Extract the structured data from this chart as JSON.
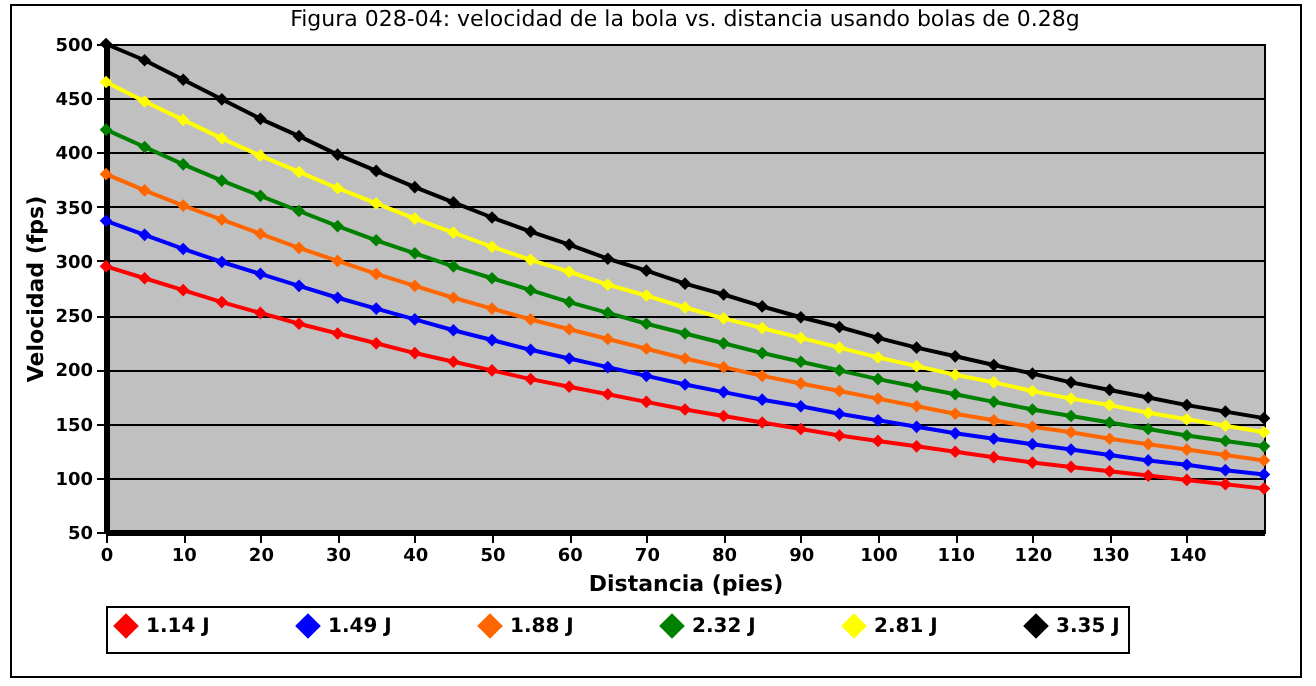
{
  "chart_data": {
    "type": "line",
    "title": "Figura 028-04: velocidad de la bola vs. distancia usando bolas de 0.28g",
    "xlabel": "Distancia (pies)",
    "ylabel": "Velocidad (fps)",
    "x": [
      0,
      5,
      10,
      15,
      20,
      25,
      30,
      35,
      40,
      45,
      50,
      55,
      60,
      65,
      70,
      75,
      80,
      85,
      90,
      95,
      100,
      105,
      110,
      115,
      120,
      125,
      130,
      135,
      140,
      145,
      150
    ],
    "series": [
      {
        "name": "1.14 J",
        "color": "#ff0000",
        "values": [
          295,
          284,
          273,
          262,
          252,
          242,
          233,
          224,
          215,
          207,
          199,
          191,
          184,
          177,
          170,
          163,
          157,
          151,
          145,
          139,
          134,
          129,
          124,
          119,
          114,
          110,
          106,
          102,
          98,
          94,
          90
        ]
      },
      {
        "name": "1.49 J",
        "color": "#0000ff",
        "values": [
          337,
          324,
          311,
          299,
          288,
          277,
          266,
          256,
          246,
          236,
          227,
          218,
          210,
          202,
          194,
          186,
          179,
          172,
          166,
          159,
          153,
          147,
          141,
          136,
          131,
          126,
          121,
          116,
          112,
          107,
          103
        ]
      },
      {
        "name": "1.88 J",
        "color": "#ff6600",
        "values": [
          380,
          365,
          351,
          338,
          325,
          312,
          300,
          288,
          277,
          266,
          256,
          246,
          237,
          228,
          219,
          210,
          202,
          194,
          187,
          180,
          173,
          166,
          159,
          153,
          147,
          142,
          136,
          131,
          126,
          121,
          116
        ]
      },
      {
        "name": "2.32 J",
        "color": "#008000",
        "values": [
          421,
          405,
          389,
          374,
          360,
          346,
          332,
          319,
          307,
          295,
          284,
          273,
          262,
          252,
          242,
          233,
          224,
          215,
          207,
          199,
          191,
          184,
          177,
          170,
          163,
          157,
          151,
          145,
          139,
          134,
          129
        ]
      },
      {
        "name": "2.81 J",
        "color": "#ffff00",
        "values": [
          465,
          447,
          430,
          413,
          397,
          382,
          367,
          353,
          339,
          326,
          313,
          301,
          290,
          278,
          268,
          257,
          247,
          238,
          229,
          220,
          211,
          203,
          195,
          188,
          180,
          173,
          167,
          160,
          154,
          148,
          142
        ]
      },
      {
        "name": "3.35 J",
        "color": "#000000",
        "values": [
          500,
          485,
          467,
          449,
          431,
          415,
          398,
          383,
          368,
          354,
          340,
          327,
          315,
          302,
          291,
          279,
          269,
          258,
          248,
          239,
          229,
          220,
          212,
          204,
          196,
          188,
          181,
          174,
          167,
          161,
          155
        ]
      }
    ],
    "xlim": [
      0,
      150
    ],
    "xticks": [
      0,
      10,
      20,
      30,
      40,
      50,
      60,
      70,
      80,
      90,
      100,
      110,
      120,
      130,
      140
    ],
    "ylim": [
      50,
      500
    ],
    "yticks": [
      50,
      100,
      150,
      200,
      250,
      300,
      350,
      400,
      450,
      500
    ],
    "grid": "y",
    "legend": "bottom",
    "marker": "diamond",
    "line_style": "solid"
  }
}
